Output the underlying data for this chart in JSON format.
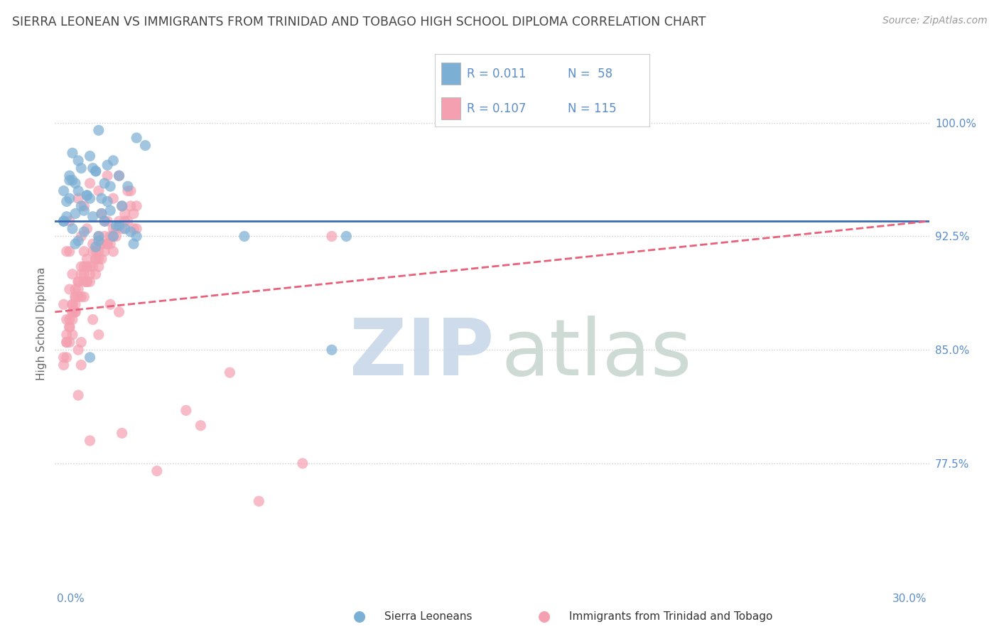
{
  "title": "SIERRA LEONEAN VS IMMIGRANTS FROM TRINIDAD AND TOBAGO HIGH SCHOOL DIPLOMA CORRELATION CHART",
  "source_text": "Source: ZipAtlas.com",
  "ylabel": "High School Diploma",
  "xlim": [
    0.0,
    30.0
  ],
  "ylim": [
    70.0,
    103.5
  ],
  "yticks": [
    77.5,
    85.0,
    92.5,
    100.0
  ],
  "ytick_labels": [
    "77.5%",
    "85.0%",
    "92.5%",
    "100.0%"
  ],
  "blue_color": "#7BAFD4",
  "pink_color": "#F4A0B0",
  "trend_blue_color": "#3B6BB5",
  "trend_pink_color": "#E8607A",
  "axis_label_color": "#5B8DC8",
  "title_color": "#444444",
  "blue_scatter_x": [
    1.5,
    2.8,
    3.1,
    0.6,
    1.2,
    2.0,
    1.8,
    0.9,
    1.4,
    2.2,
    0.5,
    1.7,
    2.5,
    0.8,
    1.1,
    1.6,
    0.4,
    2.3,
    1.9,
    0.7,
    1.3,
    0.3,
    2.1,
    0.6,
    1.0,
    1.5,
    0.8,
    2.7,
    1.4,
    0.5,
    1.2,
    0.9,
    1.7,
    2.0,
    0.3,
    1.6,
    2.4,
    0.7,
    1.1,
    1.8,
    0.4,
    2.6,
    1.3,
    0.6,
    1.9,
    0.5,
    1.0,
    2.2,
    1.5,
    0.8,
    1.4,
    0.3,
    2.8,
    1.2,
    0.7,
    6.5,
    9.5,
    10.0
  ],
  "blue_scatter_y": [
    99.5,
    99.0,
    98.5,
    98.0,
    97.8,
    97.5,
    97.2,
    97.0,
    96.8,
    96.5,
    96.2,
    96.0,
    95.8,
    95.5,
    95.2,
    95.0,
    94.8,
    94.5,
    94.2,
    94.0,
    93.8,
    93.5,
    93.2,
    93.0,
    92.8,
    92.5,
    92.2,
    92.0,
    91.8,
    96.5,
    95.0,
    94.5,
    93.5,
    92.5,
    95.5,
    94.0,
    93.0,
    96.0,
    95.2,
    94.8,
    93.8,
    92.8,
    97.0,
    96.2,
    95.8,
    95.0,
    94.2,
    93.2,
    92.2,
    97.5,
    96.8,
    93.5,
    92.5,
    84.5,
    92.0,
    92.5,
    85.0,
    92.5
  ],
  "pink_scatter_x": [
    0.5,
    0.8,
    1.0,
    0.6,
    1.2,
    0.9,
    0.7,
    1.5,
    1.1,
    0.4,
    1.8,
    2.0,
    0.6,
    1.3,
    0.8,
    1.6,
    2.2,
    0.5,
    1.4,
    0.9,
    2.5,
    1.7,
    0.3,
    1.1,
    0.7,
    2.8,
    1.9,
    0.6,
    1.5,
    2.1,
    0.4,
    1.2,
    0.8,
    1.6,
    2.3,
    0.5,
    1.0,
    1.8,
    2.6,
    0.7,
    1.3,
    0.9,
    2.0,
    1.5,
    0.4,
    1.1,
    2.4,
    0.6,
    1.7,
    0.8,
    1.4,
    2.2,
    0.3,
    1.0,
    1.6,
    2.7,
    0.5,
    1.2,
    0.9,
    2.0,
    0.7,
    1.5,
    2.5,
    0.4,
    1.1,
    1.8,
    0.6,
    1.3,
    2.3,
    0.8,
    1.0,
    0.5,
    1.9,
    2.6,
    0.4,
    1.4,
    0.7,
    1.2,
    0.9,
    2.1,
    0.6,
    1.7,
    2.4,
    0.3,
    1.0,
    1.5,
    0.8,
    2.0,
    1.3,
    0.5,
    1.8,
    2.7,
    0.6,
    1.1,
    0.9,
    1.6,
    2.2,
    0.4,
    1.4,
    0.7,
    1.0,
    1.5,
    0.8,
    2.3,
    0.5,
    1.2,
    2.8,
    1.9,
    5.0,
    8.5,
    3.5,
    6.0,
    4.5,
    7.0,
    9.5
  ],
  "pink_scatter_y": [
    93.5,
    95.0,
    94.5,
    90.0,
    96.0,
    92.5,
    88.5,
    95.5,
    93.0,
    91.5,
    96.5,
    95.0,
    87.5,
    92.0,
    89.5,
    94.0,
    96.5,
    86.5,
    91.5,
    90.5,
    95.5,
    93.5,
    88.0,
    91.0,
    89.0,
    94.5,
    92.5,
    87.5,
    91.5,
    93.0,
    85.5,
    90.5,
    89.5,
    92.0,
    94.5,
    87.0,
    90.0,
    93.5,
    95.5,
    88.5,
    91.5,
    90.0,
    93.0,
    92.5,
    86.0,
    89.5,
    94.0,
    88.0,
    92.5,
    89.0,
    91.0,
    93.5,
    84.5,
    90.5,
    92.0,
    94.0,
    86.5,
    90.0,
    88.5,
    92.5,
    87.5,
    91.0,
    93.5,
    85.5,
    89.5,
    92.0,
    86.0,
    90.5,
    93.0,
    88.5,
    89.5,
    85.5,
    92.0,
    94.5,
    87.0,
    91.0,
    87.5,
    89.5,
    84.0,
    92.5,
    87.0,
    91.5,
    93.5,
    84.0,
    88.5,
    90.5,
    85.0,
    91.5,
    87.0,
    89.0,
    92.0,
    93.0,
    88.0,
    90.5,
    85.5,
    91.0,
    87.5,
    84.5,
    90.0,
    88.0,
    91.5,
    86.0,
    82.0,
    79.5,
    91.5,
    79.0,
    93.0,
    88.0,
    80.0,
    77.5,
    77.0,
    83.5,
    81.0,
    75.0,
    92.5
  ],
  "blue_trend_x": [
    0.0,
    30.0
  ],
  "blue_trend_y": [
    93.5,
    93.5
  ],
  "pink_trend_x": [
    0.0,
    30.0
  ],
  "pink_trend_y": [
    87.5,
    93.5
  ],
  "watermark_zip_color": "#C8D8E8",
  "watermark_atlas_color": "#C8D8D0"
}
